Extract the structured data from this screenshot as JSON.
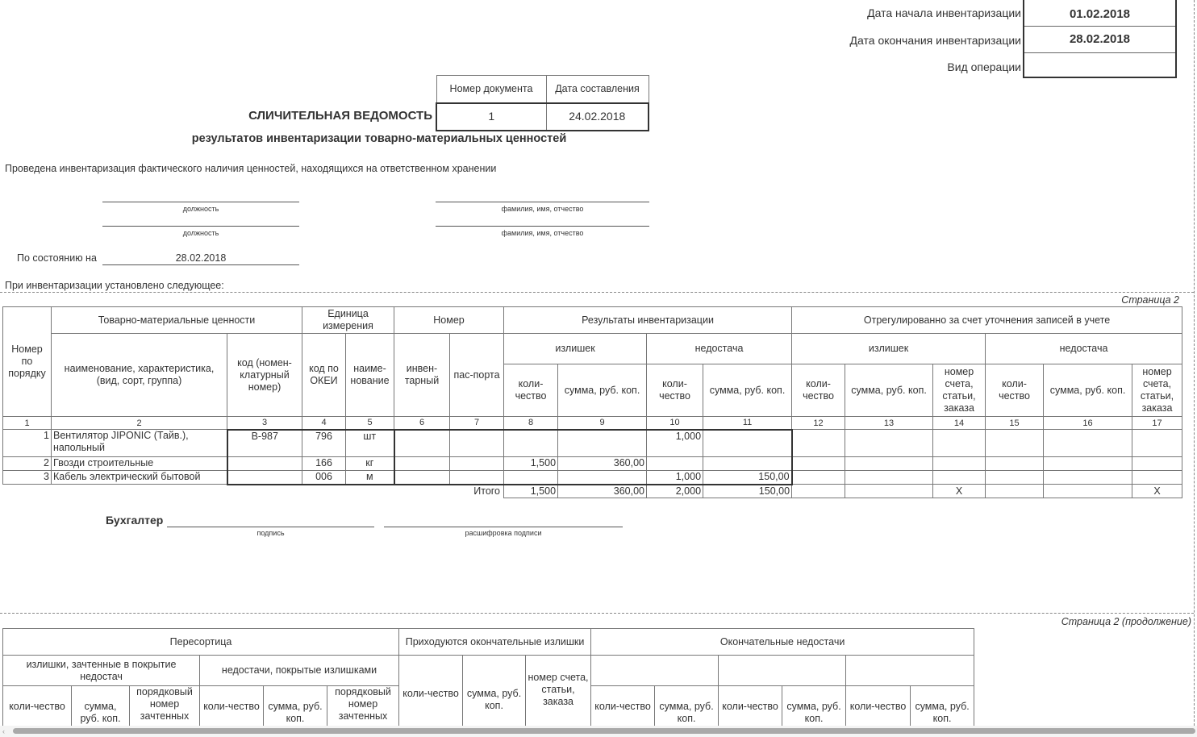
{
  "header_right": {
    "start_label": "Дата начала инвентаризации",
    "start_value": "01.02.2018",
    "end_label": "Дата окончания инвентаризации",
    "end_value": "28.02.2018",
    "op_label": "Вид операции",
    "op_value": ""
  },
  "doc_box": {
    "number_label": "Номер документа",
    "date_label": "Дата составления",
    "number": "1",
    "date": "24.02.2018"
  },
  "title": "СЛИЧИТЕЛЬНАЯ ВЕДОМОСТЬ",
  "subtitle": "результатов инвентаризации товарно-материальных ценностей",
  "intro": "Проведена инвентаризация фактического наличия ценностей, находящихся на ответственном хранении",
  "sign_captions": {
    "position": "должность",
    "fio": "фамилия, имя, отчество",
    "signature": "подпись",
    "decoding": "расшифровка подписи"
  },
  "as_of_label": "По состоянию на",
  "as_of_value": "28.02.2018",
  "established": "При инвентаризации установлено следующее:",
  "page2_label": "Страница 2",
  "page2_cont_label": "Страница 2 (продолжение)",
  "main_table": {
    "h": {
      "npp": "Номер по порядку",
      "tmc": "Товарно-материальные ценности",
      "name": "наименование, характеристика, (вид, сорт, группа)",
      "code": "код (номен-клатурный номер)",
      "unit": "Единица измерения",
      "okei": "код по ОКЕИ",
      "unit_name": "наиме-нование",
      "number": "Номер",
      "inv": "инвен-тарный",
      "passport": "пас-порта",
      "results": "Результаты инвентаризации",
      "surplus": "излишек",
      "shortage": "недостача",
      "adjusted": "Отрегулированно за счет уточнения записей в учете",
      "qty": "коли-чество",
      "sum": "сумма, руб. коп.",
      "account": "номер счета, статьи, заказа"
    },
    "col_numbers": [
      "1",
      "2",
      "3",
      "4",
      "5",
      "6",
      "7",
      "8",
      "9",
      "10",
      "11",
      "12",
      "13",
      "14",
      "15",
      "16",
      "17"
    ],
    "rows": [
      {
        "n": "1",
        "name": "Вентилятор JIPONIC (Тайв.), напольный",
        "code": "В-987",
        "okei": "796",
        "unit": "шт",
        "surplus_qty": "",
        "surplus_sum": "",
        "short_qty": "1,000",
        "short_sum": ""
      },
      {
        "n": "2",
        "name": "Гвозди строительные",
        "code": "",
        "okei": "166",
        "unit": "кг",
        "surplus_qty": "1,500",
        "surplus_sum": "360,00",
        "short_qty": "",
        "short_sum": ""
      },
      {
        "n": "3",
        "name": "Кабель электрический бытовой",
        "code": "",
        "okei": "006",
        "unit": "м",
        "surplus_qty": "",
        "surplus_sum": "",
        "short_qty": "1,000",
        "short_sum": "150,00"
      }
    ],
    "total": {
      "label": "Итого",
      "surplus_qty": "1,500",
      "surplus_sum": "360,00",
      "short_qty": "2,000",
      "short_sum": "150,00",
      "x14": "X",
      "x17": "X"
    }
  },
  "accountant_label": "Бухгалтер",
  "cont_table": {
    "regrade": "Пересортица",
    "surplus_offset": "излишки, зачтенные в покрытие недостач",
    "shortage_covered": "недостачи, покрытые излишками",
    "final_surplus": "Приходуются окончательные излишки",
    "final_shortage": "Окончательные недостачи",
    "qty": "коли-чество",
    "sum": "сумма, руб. коп.",
    "seq": "порядковый номер зачтенных",
    "account": "номер счета, статьи, заказа"
  }
}
